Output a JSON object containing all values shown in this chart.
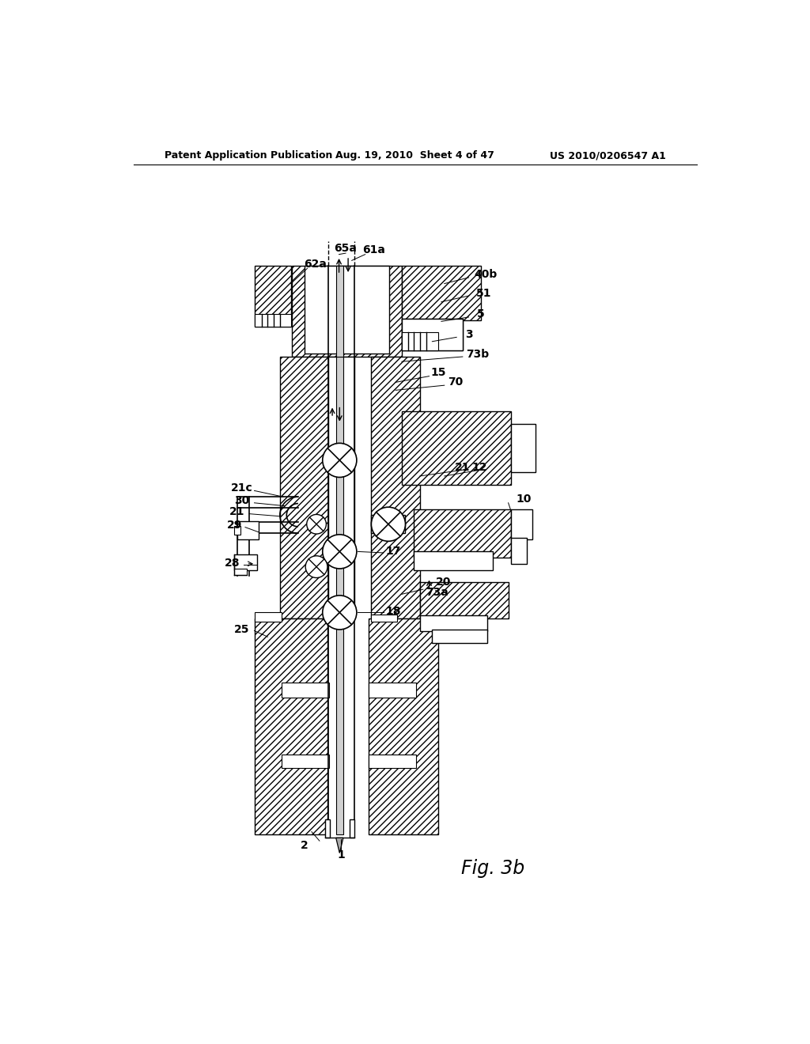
{
  "header_left": "Patent Application Publication",
  "header_center": "Aug. 19, 2010  Sheet 4 of 47",
  "header_right": "US 2010/0206547 A1",
  "figure_label": "Fig. 3b",
  "bg_color": "#ffffff"
}
